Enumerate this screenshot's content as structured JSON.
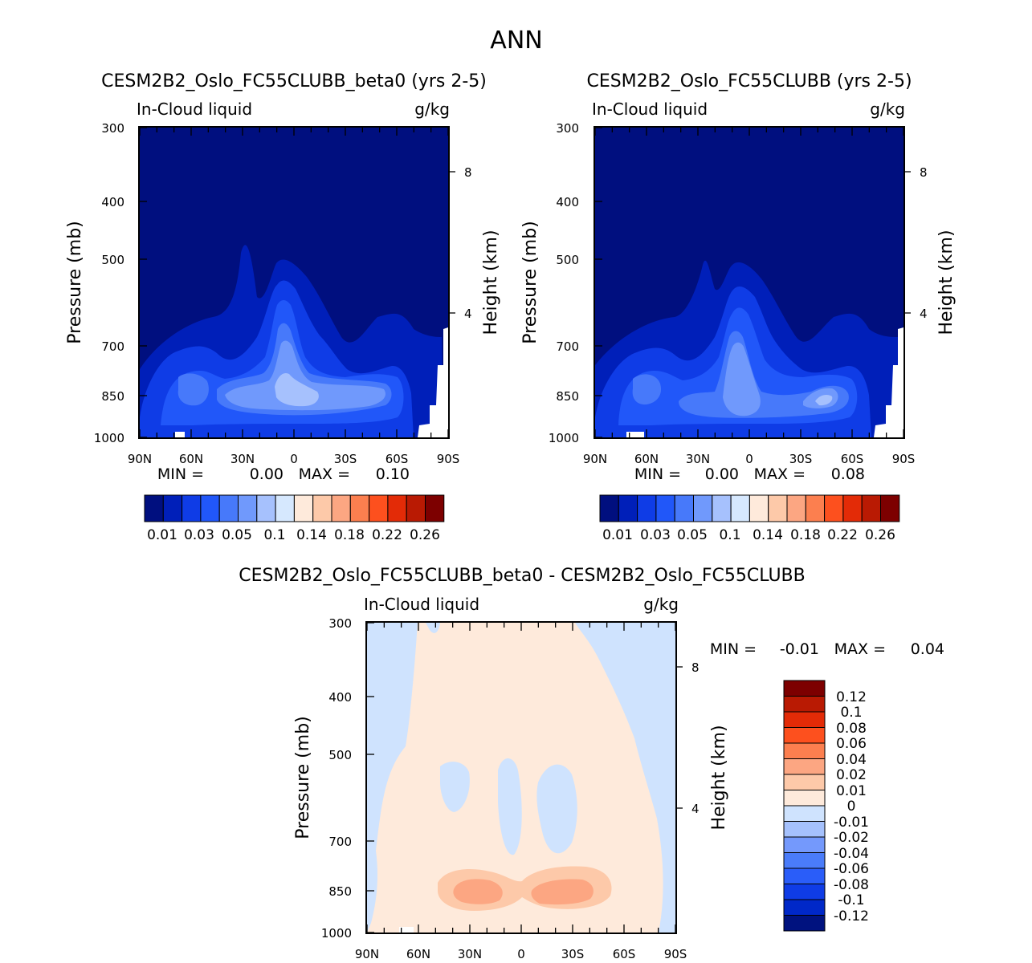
{
  "page_title": "ANN",
  "colors": {
    "seq": [
      "#000f7f",
      "#001fb9",
      "#0f3ce6",
      "#2157f9",
      "#4779fa",
      "#7099fc",
      "#a6c1fd",
      "#d6e8fe",
      "#feeadb",
      "#fdc9a9",
      "#fca682",
      "#fc7f4f",
      "#fd501e",
      "#e32b07",
      "#b91a03",
      "#7d0000"
    ],
    "div": [
      "#00127f",
      "#0028c8",
      "#0f3ce6",
      "#2a5df9",
      "#4a7cfa",
      "#7499fc",
      "#a5c1fd",
      "#cfe3fe",
      "#feeadb",
      "#fdc9a9",
      "#fca682",
      "#fc7f4f",
      "#fd501e",
      "#e32b07",
      "#b91a03",
      "#7d0000"
    ]
  },
  "chart_data": [
    {
      "type": "contour",
      "id": "panel1",
      "title": "CESM2B2_Oslo_FC55CLUBB_beta0 (yrs 2-5)",
      "variable": "In-Cloud liquid",
      "units": "g/kg",
      "ylabel": "Pressure (mb)",
      "ylabel_right": "Height (km)",
      "x_ticks": [
        "90N",
        "60N",
        "30N",
        "0",
        "30S",
        "60S",
        "90S"
      ],
      "y_ticks": [
        "300",
        "400",
        "500",
        "700",
        "850",
        "1000"
      ],
      "height_ticks": [
        "8",
        "4"
      ],
      "min_label": "MIN =",
      "min_value": "0.00",
      "max_label": "MAX =",
      "max_value": "0.10",
      "colorbar_labels": [
        "0.01",
        "0.03",
        "0.05",
        "0.1",
        "0.14",
        "0.18",
        "0.22",
        "0.26"
      ]
    },
    {
      "type": "contour",
      "id": "panel2",
      "title": "CESM2B2_Oslo_FC55CLUBB (yrs 2-5)",
      "variable": "In-Cloud liquid",
      "units": "g/kg",
      "ylabel": "Pressure (mb)",
      "ylabel_right": "Height (km)",
      "x_ticks": [
        "90N",
        "60N",
        "30N",
        "0",
        "30S",
        "60S",
        "90S"
      ],
      "y_ticks": [
        "300",
        "400",
        "500",
        "700",
        "850",
        "1000"
      ],
      "height_ticks": [
        "8",
        "4"
      ],
      "min_label": "MIN =",
      "min_value": "0.00",
      "max_label": "MAX =",
      "max_value": "0.08",
      "colorbar_labels": [
        "0.01",
        "0.03",
        "0.05",
        "0.1",
        "0.14",
        "0.18",
        "0.22",
        "0.26"
      ]
    },
    {
      "type": "contour",
      "id": "panel3",
      "title": "CESM2B2_Oslo_FC55CLUBB_beta0 - CESM2B2_Oslo_FC55CLUBB",
      "variable": "In-Cloud liquid",
      "units": "g/kg",
      "ylabel": "Pressure (mb)",
      "ylabel_right": "Height (km)",
      "x_ticks": [
        "90N",
        "60N",
        "30N",
        "0",
        "30S",
        "60S",
        "90S"
      ],
      "y_ticks": [
        "300",
        "400",
        "500",
        "700",
        "850",
        "1000"
      ],
      "height_ticks": [
        "8",
        "4"
      ],
      "min_label": "MIN =",
      "min_value": "-0.01",
      "max_label": "MAX =",
      "max_value": "0.04",
      "colorbar_labels": [
        "0.12",
        "0.1",
        "0.08",
        "0.06",
        "0.04",
        "0.02",
        "0.01",
        "0",
        "-0.01",
        "-0.02",
        "-0.04",
        "-0.06",
        "-0.08",
        "-0.1",
        "-0.12"
      ]
    }
  ]
}
